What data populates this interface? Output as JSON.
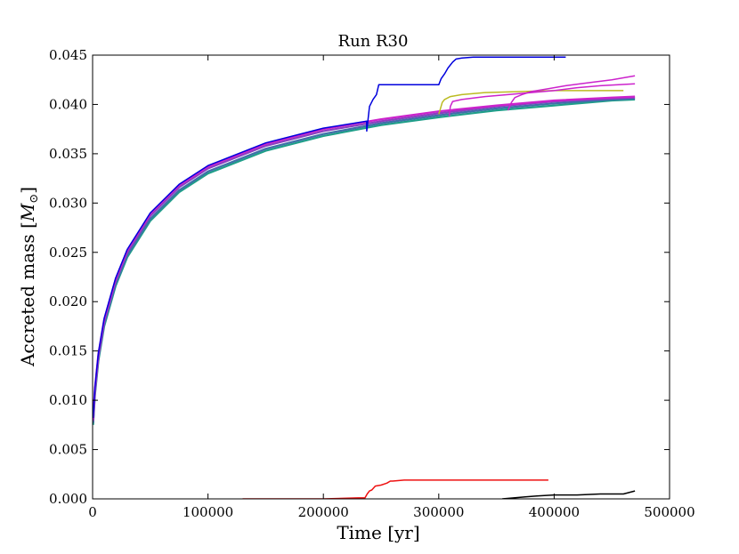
{
  "chart_data": {
    "type": "line",
    "title": "Run R30",
    "xlabel": "Time [yr]",
    "ylabel_prefix": "Accreted mass [",
    "ylabel_symbol": "M",
    "ylabel_subscript": "⊙",
    "ylabel_suffix": "]",
    "xlim": [
      0,
      500000
    ],
    "ylim": [
      0,
      0.045
    ],
    "xticks": [
      0,
      100000,
      200000,
      300000,
      400000,
      500000
    ],
    "xtick_labels": [
      "0",
      "100000",
      "200000",
      "300000",
      "400000",
      "500000"
    ],
    "yticks": [
      0,
      0.005,
      0.01,
      0.015,
      0.02,
      0.025,
      0.03,
      0.035,
      0.04,
      0.045
    ],
    "ytick_labels": [
      "0.000",
      "0.005",
      "0.010",
      "0.015",
      "0.020",
      "0.025",
      "0.030",
      "0.035",
      "0.040",
      "0.045"
    ],
    "grid": false,
    "legend": "none",
    "series": [
      {
        "color": "#1f9e89",
        "x": [
          500,
          2000,
          5000,
          10000,
          20000,
          30000,
          50000,
          75000,
          100000,
          150000,
          200000,
          250000,
          300000,
          350000,
          400000,
          450000,
          470000
        ],
        "y": [
          0.0075,
          0.0105,
          0.014,
          0.0175,
          0.0216,
          0.0245,
          0.0282,
          0.0311,
          0.033,
          0.0353,
          0.0368,
          0.0379,
          0.0387,
          0.0394,
          0.0399,
          0.0404,
          0.0405
        ]
      },
      {
        "color": "#3f6fa8",
        "x": [
          500,
          2000,
          5000,
          10000,
          20000,
          30000,
          50000,
          75000,
          100000,
          150000,
          200000,
          250000,
          300000,
          350000,
          400000,
          450000,
          470000
        ],
        "y": [
          0.0077,
          0.0107,
          0.0142,
          0.0177,
          0.0218,
          0.0247,
          0.0284,
          0.0313,
          0.0332,
          0.0355,
          0.037,
          0.0381,
          0.0389,
          0.0396,
          0.0401,
          0.0405,
          0.0406
        ]
      },
      {
        "color": "#8b3fbf",
        "x": [
          500,
          2000,
          5000,
          10000,
          20000,
          30000,
          50000,
          75000,
          100000,
          150000,
          200000,
          250000,
          300000,
          350000,
          400000,
          450000,
          470000
        ],
        "y": [
          0.0079,
          0.011,
          0.0145,
          0.018,
          0.0221,
          0.025,
          0.0287,
          0.0316,
          0.0335,
          0.0358,
          0.0373,
          0.0383,
          0.0391,
          0.0398,
          0.0403,
          0.0406,
          0.0407
        ]
      },
      {
        "color": "#cc22cc",
        "x": [
          500,
          2000,
          5000,
          10000,
          20000,
          30000,
          50000,
          75000,
          100000,
          150000,
          200000,
          250000,
          300000,
          350000,
          400000,
          450000,
          470000
        ],
        "y": [
          0.0081,
          0.0112,
          0.0147,
          0.0182,
          0.0223,
          0.0252,
          0.0289,
          0.0318,
          0.0337,
          0.036,
          0.0375,
          0.0385,
          0.0393,
          0.0399,
          0.0404,
          0.0407,
          0.0408
        ]
      },
      {
        "color": "#0000dd",
        "x": [
          500,
          2000,
          5000,
          10000,
          20000,
          30000,
          50000,
          75000,
          100000,
          150000,
          200000,
          237500,
          237600,
          240000,
          243000,
          246000,
          248000,
          290000,
          300000,
          302000,
          305000,
          308000,
          312000,
          315000,
          320000,
          330000,
          350000,
          380000,
          410000
        ],
        "y": [
          0.0082,
          0.0113,
          0.0148,
          0.0183,
          0.0224,
          0.0253,
          0.029,
          0.0319,
          0.0338,
          0.0361,
          0.0376,
          0.0383,
          0.0373,
          0.0398,
          0.0405,
          0.041,
          0.042,
          0.042,
          0.042,
          0.0426,
          0.0431,
          0.0437,
          0.0443,
          0.0446,
          0.0447,
          0.0448,
          0.0448,
          0.0448,
          0.0448
        ]
      },
      {
        "color": "#bbbb22",
        "x": [
          300000,
          302000,
          303000,
          305000,
          310000,
          320000,
          340000,
          370000,
          400000,
          430000,
          460000
        ],
        "y": [
          0.039,
          0.0398,
          0.0402,
          0.0405,
          0.0408,
          0.041,
          0.0412,
          0.0413,
          0.0414,
          0.0414,
          0.0414
        ]
      },
      {
        "color": "#cc22cc",
        "x": [
          309000,
          310000,
          312000,
          320000,
          340000,
          360000,
          380000,
          400000,
          420000,
          440000,
          470000
        ],
        "y": [
          0.0388,
          0.0398,
          0.0403,
          0.0405,
          0.0408,
          0.041,
          0.0412,
          0.0414,
          0.0417,
          0.0419,
          0.0421
        ]
      },
      {
        "color": "#cc22cc",
        "x": [
          360000,
          363000,
          366000,
          372000,
          380000,
          395000,
          410000,
          430000,
          450000,
          470000
        ],
        "y": [
          0.0394,
          0.0402,
          0.0407,
          0.041,
          0.0413,
          0.0416,
          0.0419,
          0.0422,
          0.0425,
          0.0429
        ]
      },
      {
        "color": "#ee1111",
        "x": [
          130000,
          200000,
          230000,
          236000,
          238000,
          240000,
          242000,
          245000,
          250000,
          255000,
          258000,
          260000,
          270000,
          300000,
          350000,
          395000
        ],
        "y": [
          0.0,
          0.0,
          0.0001,
          0.0001,
          0.0005,
          0.0008,
          0.0009,
          0.0013,
          0.0014,
          0.0016,
          0.0018,
          0.0018,
          0.0019,
          0.0019,
          0.0019,
          0.0019
        ]
      },
      {
        "color": "#000000",
        "x": [
          355000,
          375000,
          385000,
          400000,
          420000,
          440000,
          460000,
          470000
        ],
        "y": [
          0.0,
          0.0002,
          0.0003,
          0.0004,
          0.0004,
          0.0005,
          0.0005,
          0.0008
        ]
      }
    ]
  }
}
